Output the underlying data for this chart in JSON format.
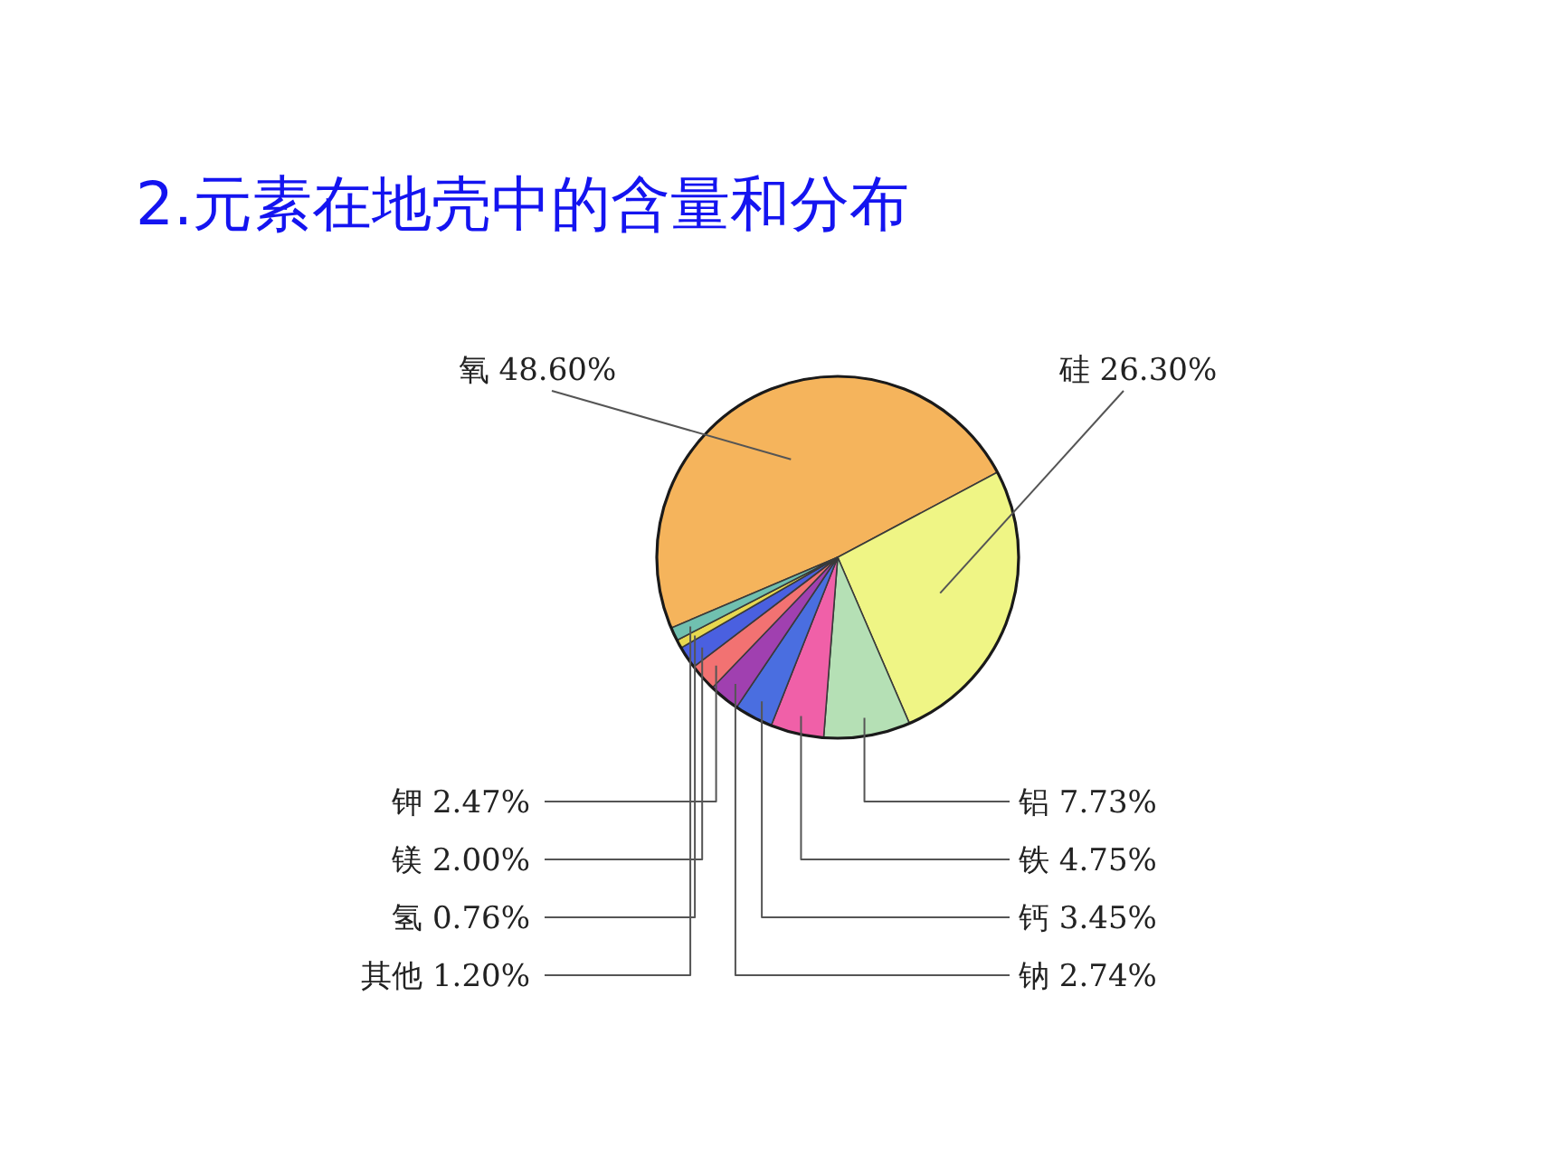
{
  "chart_data": {
    "type": "pie",
    "title": "2.元素在地壳中的含量和分布",
    "categories": [
      "氧",
      "硅",
      "铝",
      "铁",
      "钙",
      "钠",
      "钾",
      "镁",
      "氢",
      "其他"
    ],
    "values": [
      48.6,
      26.3,
      7.73,
      4.75,
      3.45,
      2.74,
      2.47,
      2.0,
      0.76,
      1.2
    ],
    "value_labels": [
      "48.60%",
      "26.30%",
      "7.73%",
      "4.75%",
      "3.45%",
      "2.74%",
      "2.47%",
      "2.00%",
      "0.76%",
      "1.20%"
    ],
    "colors": [
      "#f5b45c",
      "#eff585",
      "#b5e0b5",
      "#f060a8",
      "#4a6ee0",
      "#a040b0",
      "#f27272",
      "#4a60e0",
      "#e8d850",
      "#70c0b0"
    ]
  }
}
